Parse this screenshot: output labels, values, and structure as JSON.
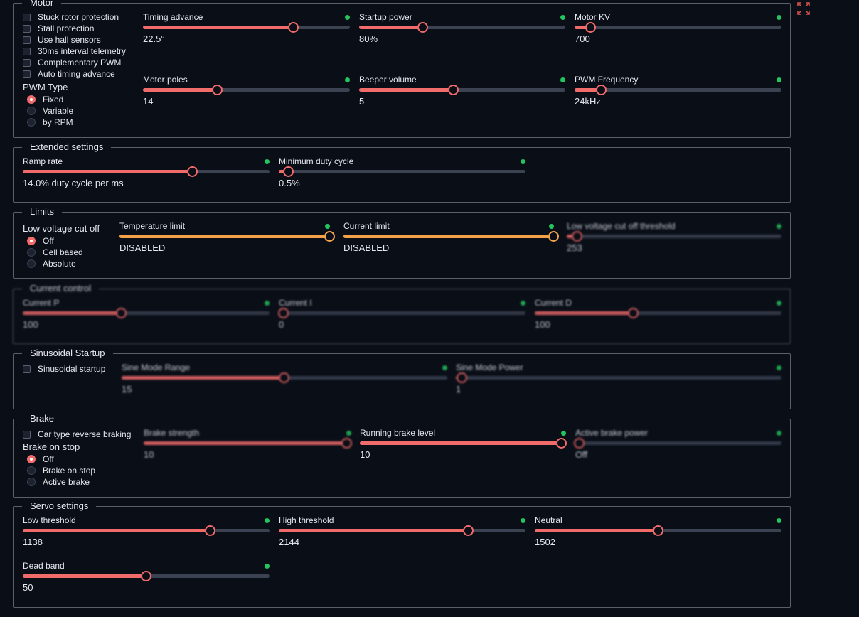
{
  "motor": {
    "title": "Motor",
    "checkboxes": [
      "Stuck rotor protection",
      "Stall protection",
      "Use hall sensors",
      "30ms interval telemetry",
      "Complementary PWM",
      "Auto timing advance"
    ],
    "pwm_type": {
      "title": "PWM Type",
      "options": [
        "Fixed",
        "Variable",
        "by RPM"
      ],
      "selected": "Fixed"
    },
    "sliders": [
      {
        "label": "Timing advance",
        "value": "22.5°",
        "percent": 73
      },
      {
        "label": "Startup power",
        "value": "80%",
        "percent": 31
      },
      {
        "label": "Motor KV",
        "value": "700",
        "percent": 8
      },
      {
        "label": "Motor poles",
        "value": "14",
        "percent": 36
      },
      {
        "label": "Beeper volume",
        "value": "5",
        "percent": 46
      },
      {
        "label": "PWM Frequency",
        "value": "24kHz",
        "percent": 13
      }
    ]
  },
  "extended": {
    "title": "Extended settings",
    "sliders": [
      {
        "label": "Ramp rate",
        "value": "14.0% duty cycle per ms",
        "percent": 69
      },
      {
        "label": "Minimum duty cycle",
        "value": "0.5%",
        "percent": 4
      }
    ]
  },
  "limits": {
    "title": "Limits",
    "low_voltage": {
      "title": "Low voltage cut off",
      "options": [
        "Off",
        "Cell based",
        "Absolute"
      ],
      "selected": "Off"
    },
    "sliders": [
      {
        "label": "Temperature limit",
        "value": "DISABLED",
        "percent": 100
      },
      {
        "label": "Current limit",
        "value": "DISABLED",
        "percent": 100
      },
      {
        "label": "Low voltage cut off threshold",
        "value": "253",
        "percent": 5
      }
    ]
  },
  "current_control": {
    "title": "Current control",
    "sliders": [
      {
        "label": "Current P",
        "value": "100",
        "percent": 40
      },
      {
        "label": "Current I",
        "value": "0",
        "percent": 2
      },
      {
        "label": "Current D",
        "value": "100",
        "percent": 40
      }
    ]
  },
  "sinusoidal": {
    "title": "Sinusoidal Startup",
    "checkbox": "Sinusoidal startup",
    "sliders": [
      {
        "label": "Sine Mode Range",
        "value": "15",
        "percent": 50
      },
      {
        "label": "Sine Mode Power",
        "value": "1",
        "percent": 2
      }
    ]
  },
  "brake": {
    "title": "Brake",
    "checkbox": "Car type reverse braking",
    "brake_on_stop": {
      "title": "Brake on stop",
      "options": [
        "Off",
        "Brake on stop",
        "Active brake"
      ],
      "selected": "Off"
    },
    "sliders": [
      {
        "label": "Brake strength",
        "value": "10",
        "percent": 98
      },
      {
        "label": "Running brake level",
        "value": "10",
        "percent": 98
      },
      {
        "label": "Active brake power",
        "value": "Off",
        "percent": 2
      }
    ]
  },
  "servo": {
    "title": "Servo settings",
    "sliders": [
      {
        "label": "Low threshold",
        "value": "1138",
        "percent": 76
      },
      {
        "label": "High threshold",
        "value": "2144",
        "percent": 77
      },
      {
        "label": "Neutral",
        "value": "1502",
        "percent": 50
      },
      {
        "label": "Dead band",
        "value": "50",
        "percent": 50
      }
    ]
  },
  "colors": {
    "accent": "#f26b6b",
    "warning": "#f4a24a",
    "ok": "#22c55e",
    "track": "#3b4252"
  },
  "icons": {
    "expand": "expand-icon"
  }
}
